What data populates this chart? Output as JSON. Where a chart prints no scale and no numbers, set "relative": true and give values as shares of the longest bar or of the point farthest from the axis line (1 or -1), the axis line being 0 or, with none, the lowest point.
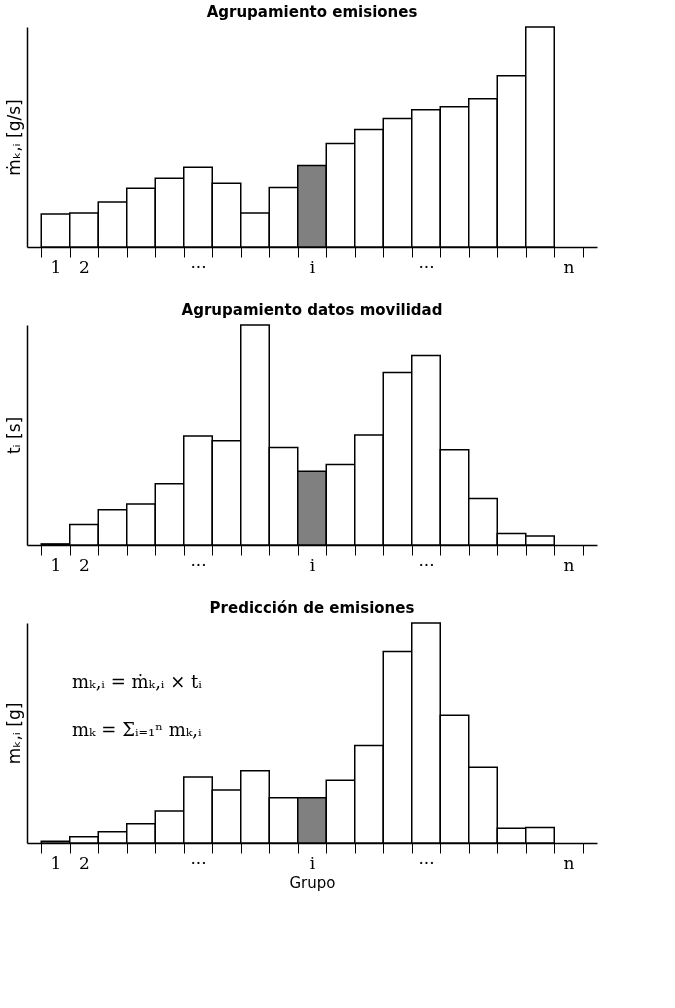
{
  "chart_data": [
    {
      "type": "bar",
      "title": "Agrupamiento emisiones",
      "ylabel": "ṁₖ,ᵢ [g/s]",
      "relative": true,
      "tick_labels": "x",
      "grid": false,
      "categories": [
        "1",
        "2",
        null,
        null,
        null,
        "···",
        null,
        null,
        null,
        "i",
        null,
        null,
        null,
        "···",
        null,
        null,
        null,
        null,
        "n"
      ],
      "values": [
        0.15,
        0.154,
        0.204,
        0.267,
        0.312,
        0.362,
        0.29,
        0.154,
        0.271,
        0.371,
        0.471,
        0.534,
        0.584,
        0.624,
        0.638,
        0.674,
        0.778,
        1,
        null
      ],
      "colors": [
        "#ffffff",
        "#ffffff",
        "#ffffff",
        "#ffffff",
        "#ffffff",
        "#ffffff",
        "#ffffff",
        "#ffffff",
        "#ffffff",
        "#808080",
        "#ffffff",
        "#ffffff",
        "#ffffff",
        "#ffffff",
        "#ffffff",
        "#ffffff",
        "#ffffff",
        "#ffffff",
        "#ffffff"
      ]
    },
    {
      "type": "bar",
      "title": "Agrupamiento datos movilidad",
      "ylabel": "tᵢ [s]",
      "relative": true,
      "tick_labels": "x",
      "grid": false,
      "categories": [
        "1",
        "2",
        null,
        null,
        null,
        "···",
        null,
        null,
        null,
        "i",
        null,
        null,
        null,
        "···",
        null,
        null,
        null,
        null,
        "n"
      ],
      "values": [
        0.005,
        0.093,
        0.16,
        0.186,
        0.278,
        0.495,
        0.474,
        1,
        0.443,
        0.335,
        0.366,
        0.5,
        0.784,
        0.861,
        0.433,
        0.211,
        0.052,
        0.041,
        null
      ],
      "colors": [
        "#ffffff",
        "#ffffff",
        "#ffffff",
        "#ffffff",
        "#ffffff",
        "#ffffff",
        "#ffffff",
        "#ffffff",
        "#ffffff",
        "#808080",
        "#ffffff",
        "#ffffff",
        "#ffffff",
        "#ffffff",
        "#ffffff",
        "#ffffff",
        "#ffffff",
        "#ffffff",
        "#ffffff"
      ]
    },
    {
      "type": "bar",
      "title": "Predicción de emisiones",
      "ylabel": "mₖ,ᵢ [g]",
      "xlabel": "Grupo",
      "relative": true,
      "tick_labels": "x",
      "grid": false,
      "categories": [
        "1",
        "2",
        null,
        null,
        null,
        "···",
        null,
        null,
        null,
        "i",
        null,
        null,
        null,
        "···",
        null,
        null,
        null,
        null,
        "n"
      ],
      "values": [
        0.008,
        0.028,
        0.051,
        0.087,
        0.146,
        0.3,
        0.241,
        0.328,
        0.206,
        0.206,
        0.285,
        0.443,
        0.87,
        1,
        0.581,
        0.344,
        0.067,
        0.071,
        null
      ],
      "colors": [
        "#ffffff",
        "#ffffff",
        "#ffffff",
        "#ffffff",
        "#ffffff",
        "#ffffff",
        "#ffffff",
        "#ffffff",
        "#ffffff",
        "#808080",
        "#ffffff",
        "#ffffff",
        "#ffffff",
        "#ffffff",
        "#ffffff",
        "#ffffff",
        "#ffffff",
        "#ffffff",
        "#ffffff"
      ],
      "annotations": [
        "mₖ,ᵢ = ṁₖ,ᵢ × tᵢ",
        "mₖ = Σᵢ₌₁ⁿ mₖ,ᵢ"
      ]
    }
  ]
}
